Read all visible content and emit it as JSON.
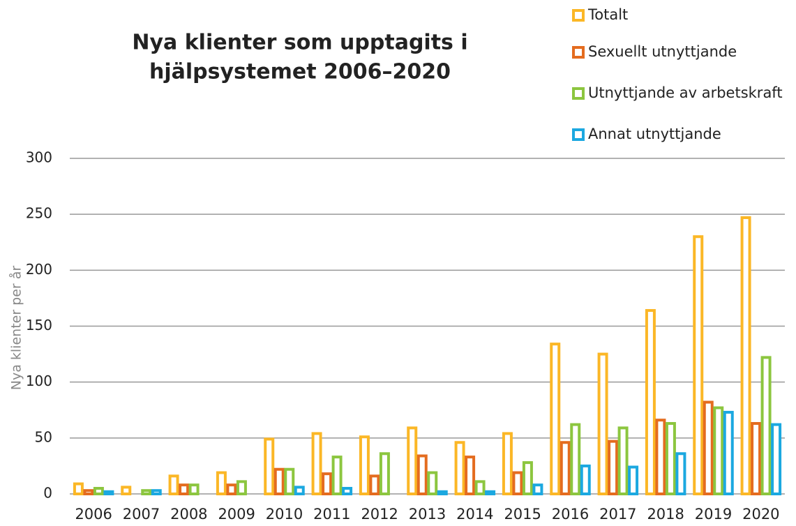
{
  "chart_data": {
    "type": "bar",
    "title": [
      "Nya klienter som upptagits i",
      "hjälpsystemet 2006–2020"
    ],
    "y_label": "Nya klienter per år",
    "categories": [
      "2006",
      "2007",
      "2008",
      "2009",
      "2010",
      "2011",
      "2012",
      "2013",
      "2014",
      "2015",
      "2016",
      "2017",
      "2018",
      "2019",
      "2020"
    ],
    "series": [
      {
        "name": "Totalt",
        "color": "#fbb726",
        "values": [
          9,
          6,
          16,
          19,
          49,
          54,
          51,
          59,
          46,
          54,
          134,
          125,
          164,
          230,
          247
        ]
      },
      {
        "name": "Sexuellt utnyttjande",
        "color": "#e46c1f",
        "values": [
          3,
          0,
          8,
          8,
          22,
          18,
          16,
          34,
          33,
          19,
          46,
          47,
          66,
          82,
          63
        ]
      },
      {
        "name": "Utnyttjande av arbetskraft",
        "color": "#8cc63f",
        "values": [
          5,
          3,
          8,
          11,
          22,
          33,
          36,
          19,
          11,
          28,
          62,
          59,
          63,
          77,
          122
        ]
      },
      {
        "name": "Annat utnyttjande",
        "color": "#1ba8e0",
        "values": [
          2,
          3,
          0,
          0,
          6,
          5,
          0,
          2,
          2,
          8,
          25,
          24,
          36,
          73,
          62
        ]
      }
    ],
    "ylim": [
      0,
      300
    ],
    "yticks": [
      0,
      50,
      100,
      150,
      200,
      250,
      300
    ],
    "grid": true,
    "legend": "top-right"
  }
}
